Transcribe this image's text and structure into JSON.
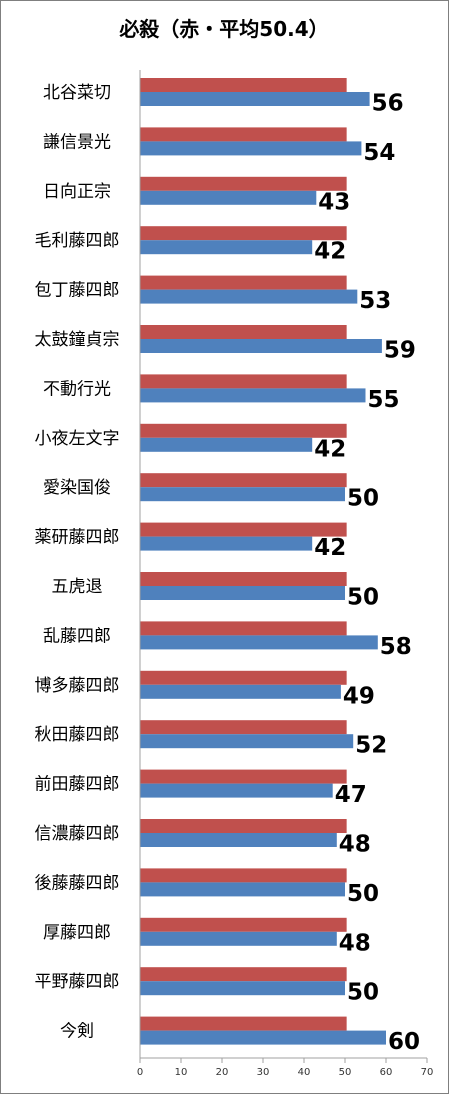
{
  "chart_data": {
    "type": "bar",
    "orientation": "horizontal",
    "title": "必殺（赤・平均50.4）",
    "categories": [
      "北谷菜切",
      "謙信景光",
      "日向正宗",
      "毛利藤四郎",
      "包丁藤四郎",
      "太鼓鐘貞宗",
      "不動行光",
      "小夜左文字",
      "愛染国俊",
      "薬研藤四郎",
      "五虎退",
      "乱藤四郎",
      "博多藤四郎",
      "秋田藤四郎",
      "前田藤四郎",
      "信濃藤四郎",
      "後藤藤四郎",
      "厚藤四郎",
      "平野藤四郎",
      "今剣"
    ],
    "series": [
      {
        "values": [
          50.4,
          50.4,
          50.4,
          50.4,
          50.4,
          50.4,
          50.4,
          50.4,
          50.4,
          50.4,
          50.4,
          50.4,
          50.4,
          50.4,
          50.4,
          50.4,
          50.4,
          50.4,
          50.4,
          50.4
        ],
        "color": "#c0504d"
      },
      {
        "values": [
          56,
          54,
          43,
          42,
          53,
          59,
          55,
          42,
          50,
          42,
          50,
          58,
          49,
          52,
          47,
          48,
          50,
          48,
          50,
          60
        ],
        "color": "#4f81bd"
      }
    ],
    "data_labels": [
      "56",
      "54",
      "43",
      "42",
      "53",
      "59",
      "55",
      "42",
      "50",
      "42",
      "50",
      "58",
      "49",
      "52",
      "47",
      "48",
      "50",
      "48",
      "50",
      "60"
    ],
    "xlim": [
      0,
      70
    ],
    "xticks": [
      "0",
      "10",
      "20",
      "30",
      "40",
      "50",
      "60",
      "70"
    ],
    "grid": false,
    "legend": "none"
  }
}
